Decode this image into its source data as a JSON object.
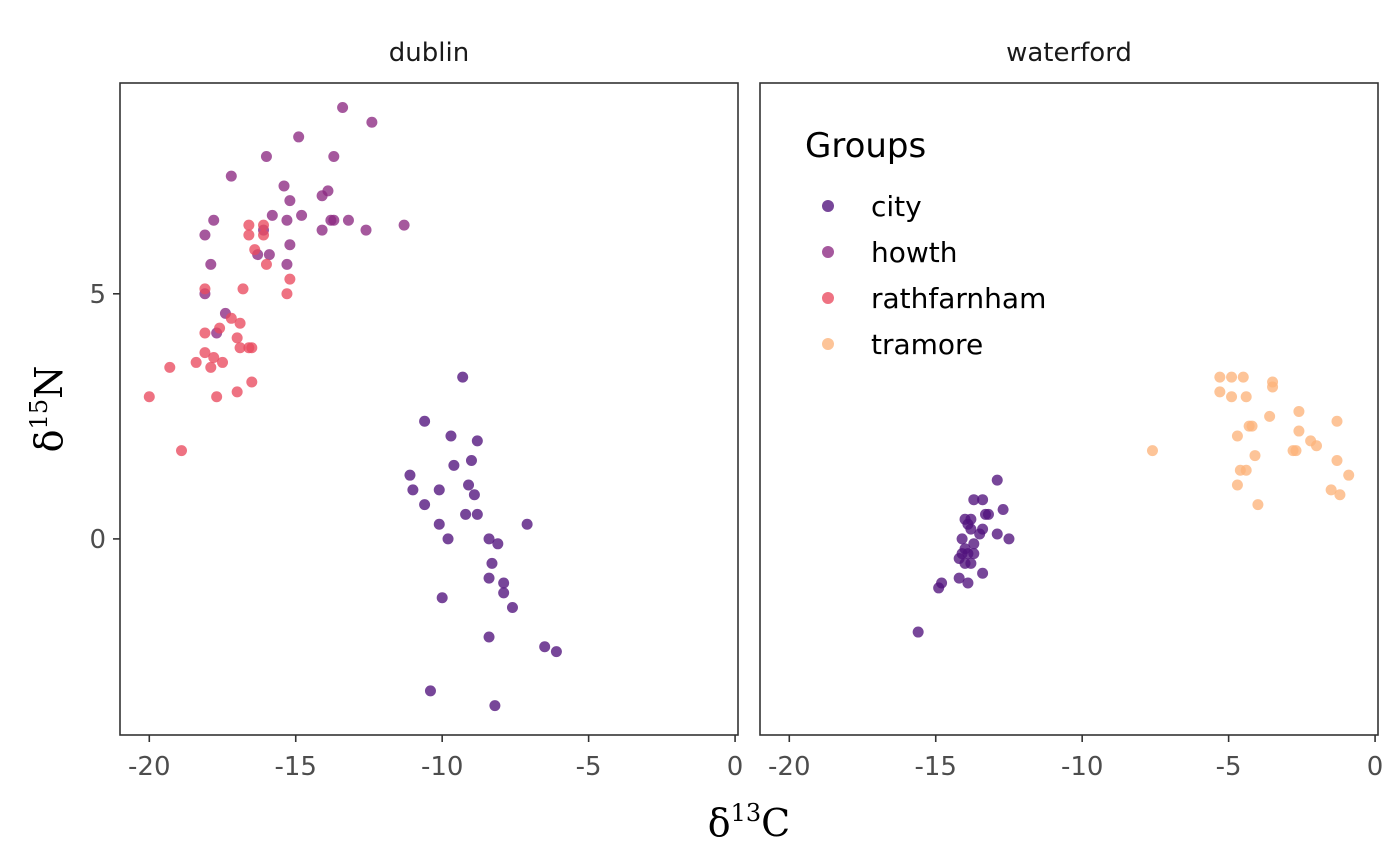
{
  "chart_data": {
    "type": "scatter",
    "x_axis": {
      "label": "δ",
      "superscript": "13",
      "suffix": "C",
      "range": [
        -21,
        0.1
      ],
      "ticks": [
        -20,
        -15,
        -10,
        -5,
        0
      ],
      "tick_labels": [
        "-20",
        "-15",
        "-10",
        "-5",
        "0"
      ]
    },
    "y_axis": {
      "label": "δ",
      "superscript": "15",
      "suffix": "N",
      "range": [
        -4.0,
        9.3
      ],
      "ticks": [
        0,
        5
      ],
      "tick_labels": [
        "0",
        "5"
      ]
    },
    "grid": false,
    "legend": {
      "title": "Groups",
      "placement": "inside-top-left of right panel",
      "entries": [
        {
          "name": "city",
          "color": "#51127c"
        },
        {
          "name": "howth",
          "color": "#8c2981"
        },
        {
          "name": "rathfarnham",
          "color": "#e94a5f"
        },
        {
          "name": "tramore",
          "color": "#fdb37b"
        }
      ]
    },
    "panels": [
      {
        "title": "dublin",
        "series": [
          {
            "name": "howth",
            "points": [
              [
                -13.4,
                8.8
              ],
              [
                -12.4,
                8.5
              ],
              [
                -14.9,
                8.2
              ],
              [
                -16.0,
                7.8
              ],
              [
                -13.7,
                7.8
              ],
              [
                -17.2,
                7.4
              ],
              [
                -15.4,
                7.2
              ],
              [
                -14.1,
                7.0
              ],
              [
                -13.9,
                7.1
              ],
              [
                -15.2,
                6.9
              ],
              [
                -15.8,
                6.6
              ],
              [
                -14.8,
                6.6
              ],
              [
                -13.8,
                6.5
              ],
              [
                -13.7,
                6.5
              ],
              [
                -13.2,
                6.5
              ],
              [
                -17.8,
                6.5
              ],
              [
                -15.3,
                6.5
              ],
              [
                -12.6,
                6.3
              ],
              [
                -11.3,
                6.4
              ],
              [
                -14.1,
                6.3
              ],
              [
                -16.1,
                6.3
              ],
              [
                -18.1,
                6.2
              ],
              [
                -15.2,
                6.0
              ],
              [
                -15.9,
                5.8
              ],
              [
                -16.3,
                5.8
              ],
              [
                -17.9,
                5.6
              ],
              [
                -15.3,
                5.6
              ],
              [
                -18.1,
                5.0
              ],
              [
                -17.7,
                4.2
              ],
              [
                -17.4,
                4.6
              ]
            ]
          },
          {
            "name": "rathfarnham",
            "points": [
              [
                -16.6,
                6.4
              ],
              [
                -16.1,
                6.4
              ],
              [
                -16.1,
                6.2
              ],
              [
                -16.6,
                6.2
              ],
              [
                -16.4,
                5.9
              ],
              [
                -16.0,
                5.6
              ],
              [
                -15.2,
                5.3
              ],
              [
                -16.8,
                5.1
              ],
              [
                -18.1,
                5.1
              ],
              [
                -15.3,
                5.0
              ],
              [
                -17.2,
                4.5
              ],
              [
                -16.9,
                4.4
              ],
              [
                -17.6,
                4.3
              ],
              [
                -18.1,
                4.2
              ],
              [
                -17.0,
                4.1
              ],
              [
                -16.9,
                3.9
              ],
              [
                -16.6,
                3.9
              ],
              [
                -16.5,
                3.9
              ],
              [
                -18.1,
                3.8
              ],
              [
                -17.8,
                3.7
              ],
              [
                -17.5,
                3.6
              ],
              [
                -18.4,
                3.6
              ],
              [
                -19.3,
                3.5
              ],
              [
                -17.9,
                3.5
              ],
              [
                -16.5,
                3.2
              ],
              [
                -17.0,
                3.0
              ],
              [
                -17.7,
                2.9
              ],
              [
                -20.0,
                2.9
              ],
              [
                -18.9,
                1.8
              ]
            ]
          },
          {
            "name": "city",
            "points": [
              [
                -9.3,
                3.3
              ],
              [
                -10.6,
                2.4
              ],
              [
                -9.7,
                2.1
              ],
              [
                -8.8,
                2.0
              ],
              [
                -9.0,
                1.6
              ],
              [
                -9.6,
                1.5
              ],
              [
                -11.1,
                1.3
              ],
              [
                -9.1,
                1.1
              ],
              [
                -11.0,
                1.0
              ],
              [
                -10.1,
                1.0
              ],
              [
                -8.9,
                0.9
              ],
              [
                -10.6,
                0.7
              ],
              [
                -8.8,
                0.5
              ],
              [
                -9.2,
                0.5
              ],
              [
                -10.1,
                0.3
              ],
              [
                -7.1,
                0.3
              ],
              [
                -9.8,
                0.0
              ],
              [
                -8.4,
                -0.0
              ],
              [
                -8.1,
                -0.1
              ],
              [
                -8.3,
                -0.5
              ],
              [
                -8.4,
                -0.8
              ],
              [
                -7.9,
                -0.9
              ],
              [
                -7.9,
                -1.1
              ],
              [
                -10.0,
                -1.2
              ],
              [
                -7.6,
                -1.4
              ],
              [
                -8.4,
                -2.0
              ],
              [
                -6.5,
                -2.2
              ],
              [
                -6.1,
                -2.3
              ],
              [
                -10.4,
                -3.1
              ],
              [
                -8.2,
                -3.4
              ]
            ]
          }
        ]
      },
      {
        "title": "waterford",
        "series": [
          {
            "name": "tramore",
            "points": [
              [
                -5.3,
                3.3
              ],
              [
                -4.9,
                3.3
              ],
              [
                -4.5,
                3.3
              ],
              [
                -3.5,
                3.2
              ],
              [
                -3.5,
                3.1
              ],
              [
                -5.3,
                3.0
              ],
              [
                -4.9,
                2.9
              ],
              [
                -4.4,
                2.9
              ],
              [
                -2.6,
                2.6
              ],
              [
                -3.6,
                2.5
              ],
              [
                -1.3,
                2.4
              ],
              [
                -4.3,
                2.3
              ],
              [
                -4.2,
                2.3
              ],
              [
                -2.6,
                2.2
              ],
              [
                -4.7,
                2.1
              ],
              [
                -2.2,
                2.0
              ],
              [
                -2.0,
                1.9
              ],
              [
                -7.6,
                1.8
              ],
              [
                -2.8,
                1.8
              ],
              [
                -2.7,
                1.8
              ],
              [
                -4.1,
                1.7
              ],
              [
                -1.3,
                1.6
              ],
              [
                -4.6,
                1.4
              ],
              [
                -4.4,
                1.4
              ],
              [
                -0.9,
                1.3
              ],
              [
                -4.7,
                1.1
              ],
              [
                -1.5,
                1.0
              ],
              [
                -1.2,
                0.9
              ],
              [
                -4.0,
                0.7
              ]
            ]
          },
          {
            "name": "city",
            "points": [
              [
                -12.9,
                1.2
              ],
              [
                -13.7,
                0.8
              ],
              [
                -13.4,
                0.8
              ],
              [
                -12.7,
                0.6
              ],
              [
                -13.3,
                0.5
              ],
              [
                -13.2,
                0.5
              ],
              [
                -13.8,
                0.4
              ],
              [
                -14.0,
                0.4
              ],
              [
                -13.9,
                0.3
              ],
              [
                -13.4,
                0.2
              ],
              [
                -13.8,
                0.2
              ],
              [
                -12.9,
                0.1
              ],
              [
                -13.5,
                0.1
              ],
              [
                -12.5,
                0.0
              ],
              [
                -14.1,
                -0.0
              ],
              [
                -13.7,
                -0.1
              ],
              [
                -14.0,
                -0.2
              ],
              [
                -14.1,
                -0.3
              ],
              [
                -13.9,
                -0.3
              ],
              [
                -13.7,
                -0.3
              ],
              [
                -14.2,
                -0.4
              ],
              [
                -14.0,
                -0.5
              ],
              [
                -13.8,
                -0.5
              ],
              [
                -13.4,
                -0.7
              ],
              [
                -14.2,
                -0.8
              ],
              [
                -13.9,
                -0.9
              ],
              [
                -14.8,
                -0.9
              ],
              [
                -14.9,
                -1.0
              ],
              [
                -15.6,
                -1.9
              ]
            ]
          }
        ]
      }
    ]
  }
}
